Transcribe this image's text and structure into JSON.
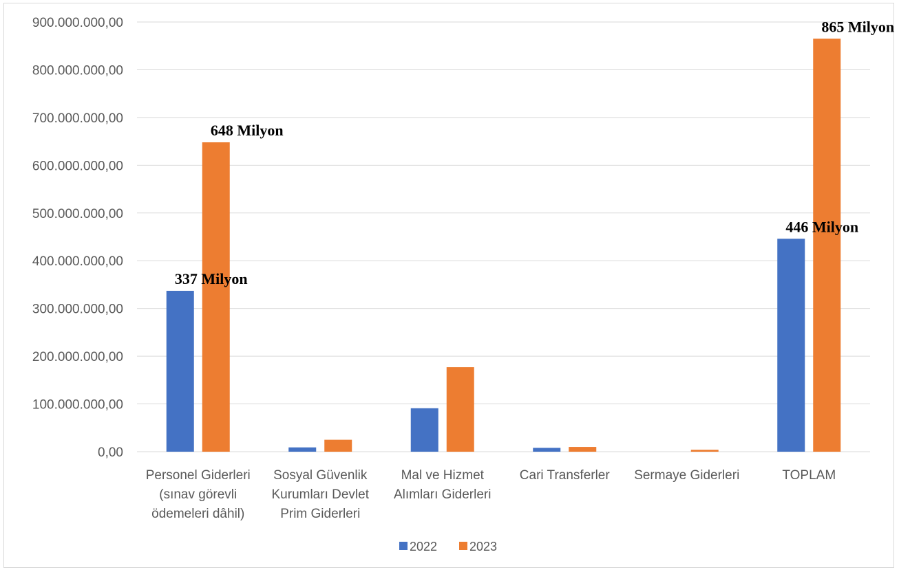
{
  "chart_data": {
    "type": "bar",
    "title": "",
    "xlabel": "",
    "ylabel": "",
    "ylim": [
      0,
      900000000
    ],
    "y_ticks": [
      0,
      100000000,
      200000000,
      300000000,
      400000000,
      500000000,
      600000000,
      700000000,
      800000000,
      900000000
    ],
    "y_tick_labels": [
      "0,00",
      "100.000.000,00",
      "200.000.000,00",
      "300.000.000,00",
      "400.000.000,00",
      "500.000.000,00",
      "600.000.000,00",
      "700.000.000,00",
      "800.000.000,00",
      "900.000.000,00"
    ],
    "grid": true,
    "legend_position": "bottom",
    "categories": [
      [
        "Personel Giderleri",
        "(sınav görevli",
        "ödemeleri dâhil)"
      ],
      [
        "Sosyal Güvenlik",
        "Kurumları Devlet",
        "Prim Giderleri"
      ],
      [
        "Mal ve Hizmet",
        "Alımları Giderleri"
      ],
      [
        "Cari Transferler"
      ],
      [
        "Sermaye Giderleri"
      ],
      [
        "TOPLAM"
      ]
    ],
    "series": [
      {
        "name": "2022",
        "color": "#4472c4",
        "values": [
          337000000,
          9000000,
          91000000,
          8000000,
          0,
          446000000
        ]
      },
      {
        "name": "2023",
        "color": "#ed7d31",
        "values": [
          648000000,
          25000000,
          177000000,
          10000000,
          4000000,
          865000000
        ]
      }
    ],
    "data_labels": [
      {
        "series": 0,
        "index": 0,
        "text": "337 Milyon"
      },
      {
        "series": 1,
        "index": 0,
        "text": "648 Milyon"
      },
      {
        "series": 0,
        "index": 5,
        "text": "446 Milyon"
      },
      {
        "series": 1,
        "index": 5,
        "text": "865 Milyon"
      }
    ]
  }
}
